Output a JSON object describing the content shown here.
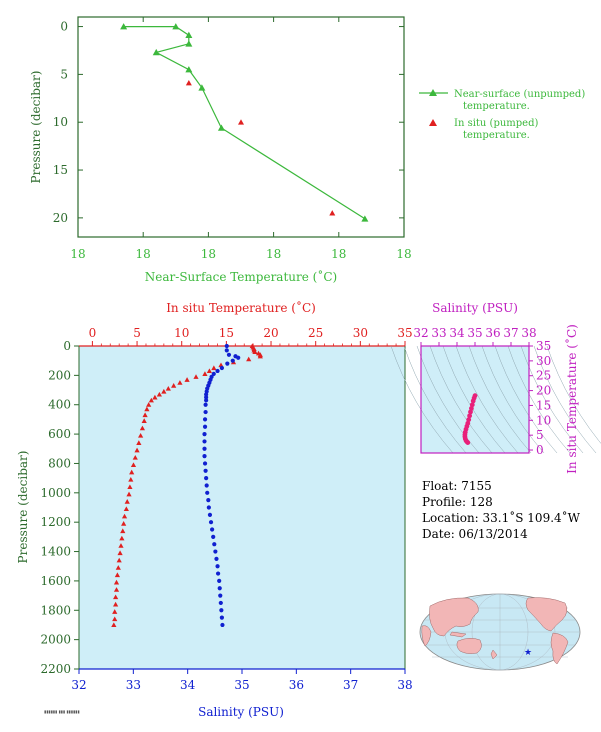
{
  "chart_data": [
    {
      "id": "near-surface",
      "type": "scatter",
      "xlabel": "Near-Surface Temperature (˚C)",
      "ylabel": "Pressure (decibar)",
      "x_tick_labels": [
        "18",
        "18",
        "18",
        "18",
        "18",
        "18"
      ],
      "y_ticks": [
        0,
        5,
        10,
        15,
        20
      ],
      "xlim": [
        17.8,
        18.3
      ],
      "ylim": [
        22,
        -1
      ],
      "legend_position": "right",
      "series": [
        {
          "name": "Near-surface (unpumped) temperature.",
          "color": "#3cb83c",
          "marker": "triangle",
          "points": [
            {
              "x": 17.87,
              "y": 0
            },
            {
              "x": 17.95,
              "y": 0
            },
            {
              "x": 17.97,
              "y": 0.9
            },
            {
              "x": 17.97,
              "y": 1.8
            },
            {
              "x": 17.92,
              "y": 2.7
            },
            {
              "x": 17.97,
              "y": 4.5
            },
            {
              "x": 17.99,
              "y": 6.4
            },
            {
              "x": 18.02,
              "y": 10.6
            },
            {
              "x": 18.24,
              "y": 20.1
            }
          ]
        },
        {
          "name": "In situ (pumped) temperature.",
          "color": "#e02020",
          "marker": "triangle",
          "points": [
            {
              "x": 17.97,
              "y": 5.9
            },
            {
              "x": 18.05,
              "y": 10.0
            },
            {
              "x": 18.19,
              "y": 19.5
            }
          ]
        }
      ]
    },
    {
      "id": "profile",
      "type": "scatter",
      "ylabel": "Pressure (decibar)",
      "x_top_label": "In situ Temperature (˚C)",
      "x_bottom_label": "Salinity (PSU)",
      "temp_ticks": [
        0,
        5,
        10,
        15,
        20,
        25,
        30,
        35
      ],
      "sal_ticks": [
        32,
        33,
        34,
        35,
        36,
        37,
        38
      ],
      "p_ticks": [
        0,
        200,
        400,
        600,
        800,
        1000,
        1200,
        1400,
        1600,
        1800,
        2000,
        2200
      ],
      "temp_range": [
        -1.5,
        35
      ],
      "sal_range": [
        32,
        38
      ],
      "p_range": [
        0,
        2200
      ],
      "temperature": {
        "color": "#e02020",
        "marker": "triangle",
        "points": [
          [
            17.9,
            0
          ],
          [
            18.0,
            10
          ],
          [
            18.1,
            20
          ],
          [
            18.1,
            30
          ],
          [
            18.2,
            40
          ],
          [
            18.6,
            50
          ],
          [
            18.8,
            60
          ],
          [
            18.8,
            70
          ],
          [
            17.5,
            90
          ],
          [
            15.8,
            110
          ],
          [
            14.4,
            130
          ],
          [
            13.6,
            150
          ],
          [
            13.1,
            170
          ],
          [
            12.6,
            190
          ],
          [
            11.6,
            210
          ],
          [
            10.6,
            230
          ],
          [
            9.8,
            250
          ],
          [
            9.1,
            270
          ],
          [
            8.5,
            290
          ],
          [
            8.0,
            310
          ],
          [
            7.5,
            330
          ],
          [
            7.0,
            350
          ],
          [
            6.6,
            370
          ],
          [
            6.3,
            400
          ],
          [
            6.1,
            430
          ],
          [
            5.9,
            470
          ],
          [
            5.8,
            510
          ],
          [
            5.6,
            560
          ],
          [
            5.4,
            610
          ],
          [
            5.2,
            660
          ],
          [
            5.0,
            710
          ],
          [
            4.8,
            760
          ],
          [
            4.6,
            810
          ],
          [
            4.4,
            860
          ],
          [
            4.3,
            910
          ],
          [
            4.2,
            960
          ],
          [
            4.1,
            1010
          ],
          [
            3.9,
            1060
          ],
          [
            3.8,
            1110
          ],
          [
            3.6,
            1160
          ],
          [
            3.5,
            1210
          ],
          [
            3.4,
            1260
          ],
          [
            3.3,
            1310
          ],
          [
            3.2,
            1360
          ],
          [
            3.1,
            1410
          ],
          [
            3.0,
            1460
          ],
          [
            2.9,
            1510
          ],
          [
            2.8,
            1560
          ],
          [
            2.7,
            1610
          ],
          [
            2.7,
            1660
          ],
          [
            2.6,
            1710
          ],
          [
            2.6,
            1760
          ],
          [
            2.5,
            1810
          ],
          [
            2.5,
            1860
          ],
          [
            2.4,
            1900
          ]
        ]
      },
      "salinity": {
        "color": "#1020d0",
        "marker": "dot",
        "points": [
          [
            34.72,
            0
          ],
          [
            34.72,
            30
          ],
          [
            34.76,
            60
          ],
          [
            34.88,
            70
          ],
          [
            34.93,
            80
          ],
          [
            34.83,
            100
          ],
          [
            34.73,
            120
          ],
          [
            34.63,
            150
          ],
          [
            34.55,
            170
          ],
          [
            34.48,
            190
          ],
          [
            34.44,
            210
          ],
          [
            34.42,
            230
          ],
          [
            34.4,
            250
          ],
          [
            34.38,
            270
          ],
          [
            34.36,
            290
          ],
          [
            34.35,
            310
          ],
          [
            34.34,
            330
          ],
          [
            34.34,
            350
          ],
          [
            34.34,
            370
          ],
          [
            34.33,
            400
          ],
          [
            34.33,
            450
          ],
          [
            34.32,
            500
          ],
          [
            34.32,
            550
          ],
          [
            34.31,
            600
          ],
          [
            34.31,
            650
          ],
          [
            34.31,
            700
          ],
          [
            34.31,
            750
          ],
          [
            34.32,
            800
          ],
          [
            34.33,
            850
          ],
          [
            34.34,
            900
          ],
          [
            34.35,
            950
          ],
          [
            34.36,
            1000
          ],
          [
            34.38,
            1050
          ],
          [
            34.39,
            1100
          ],
          [
            34.41,
            1150
          ],
          [
            34.43,
            1200
          ],
          [
            34.45,
            1250
          ],
          [
            34.47,
            1300
          ],
          [
            34.49,
            1350
          ],
          [
            34.51,
            1400
          ],
          [
            34.53,
            1450
          ],
          [
            34.55,
            1500
          ],
          [
            34.56,
            1550
          ],
          [
            34.58,
            1600
          ],
          [
            34.59,
            1650
          ],
          [
            34.6,
            1700
          ],
          [
            34.61,
            1750
          ],
          [
            34.62,
            1800
          ],
          [
            34.63,
            1850
          ],
          [
            34.64,
            1900
          ]
        ]
      }
    },
    {
      "id": "ts-diagram",
      "type": "scatter",
      "x_top_label": "Salinity (PSU)",
      "right_label": "In situ Temperature (˚C)",
      "sal_ticks": [
        32,
        33,
        34,
        35,
        36,
        37,
        38
      ],
      "temp_ticks": [
        0,
        5,
        10,
        15,
        20,
        25,
        30,
        35
      ],
      "sal_range": [
        32,
        38
      ],
      "temp_range": [
        -1,
        35
      ],
      "color": "#e8207a",
      "points": [
        [
          35.0,
          18.3
        ],
        [
          34.95,
          17.5
        ],
        [
          34.9,
          16.5
        ],
        [
          34.85,
          15.2
        ],
        [
          34.8,
          14.0
        ],
        [
          34.75,
          12.8
        ],
        [
          34.7,
          11.5
        ],
        [
          34.65,
          10.2
        ],
        [
          34.6,
          9.0
        ],
        [
          34.55,
          8.0
        ],
        [
          34.5,
          7.0
        ],
        [
          34.46,
          6.0
        ],
        [
          34.44,
          5.2
        ],
        [
          34.44,
          4.5
        ],
        [
          34.46,
          3.8
        ],
        [
          34.5,
          3.2
        ],
        [
          34.55,
          2.8
        ],
        [
          34.6,
          2.5
        ]
      ]
    }
  ],
  "float_info": {
    "float": "Float:  7155",
    "profile": "Profile:  128",
    "location": "Location:  33.1˚S  109.4˚W",
    "date": "Date:  06/13/2014"
  },
  "map": {
    "float_marker_color": "#1020d0",
    "ocean_color": "#c8e8f4",
    "land_color": "#f2b6b6"
  },
  "colors": {
    "green": "#3cb83c",
    "axis_green": "#2c6a2c",
    "red": "#e02020",
    "blue": "#1020d0",
    "magenta": "#c020c0",
    "panel_bg": "#cfeef8"
  }
}
